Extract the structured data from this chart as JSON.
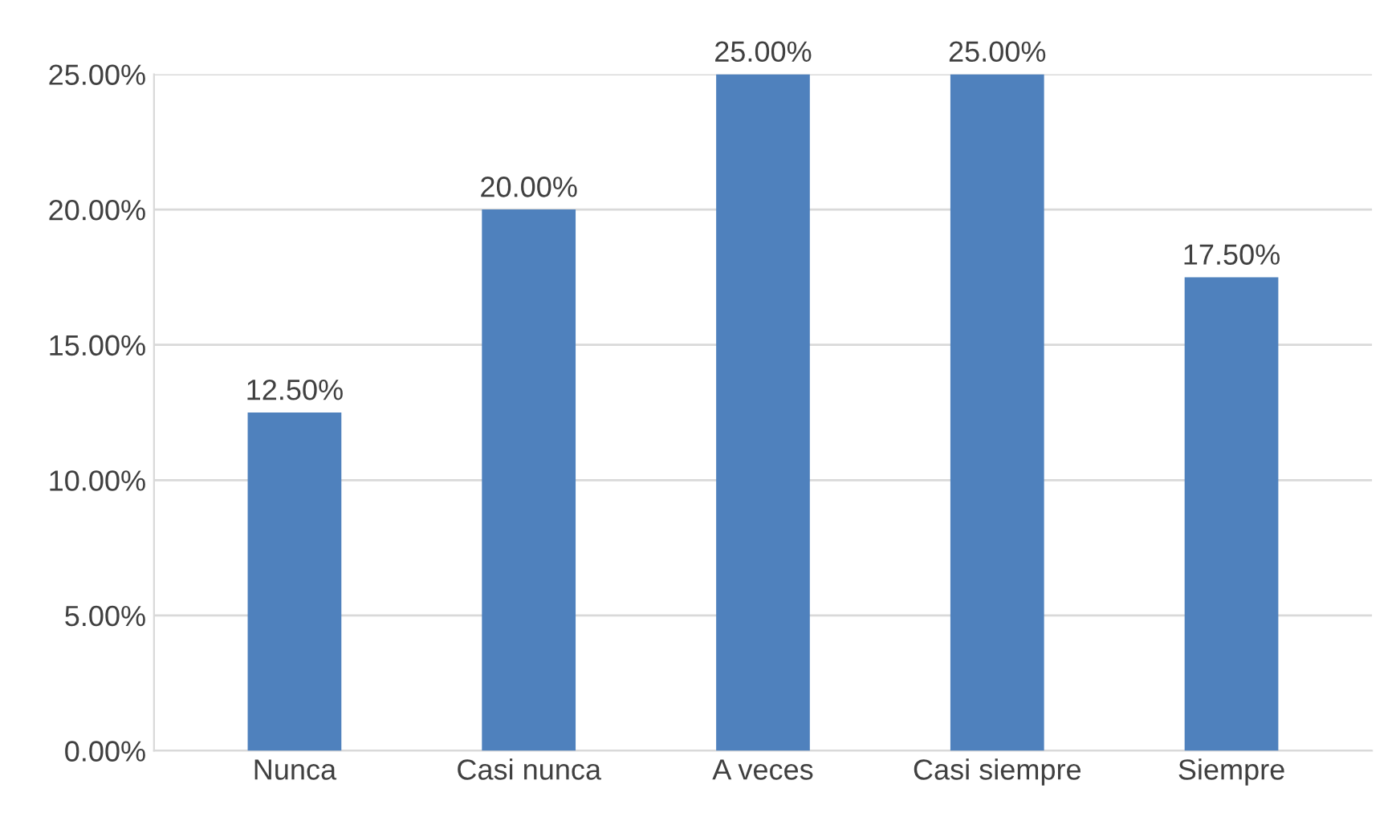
{
  "chart_data": {
    "type": "bar",
    "categories": [
      "Nunca",
      "Casi nunca",
      "A veces",
      "Casi siempre",
      "Siempre"
    ],
    "values": [
      12.5,
      20,
      25,
      25,
      17.5
    ],
    "color": "#4f81bd",
    "value_labels": [
      "12.50%",
      "20.00%",
      "25.00%",
      "25.00%",
      "17.50%"
    ],
    "ylim": [
      0,
      25
    ],
    "yticks": [
      {
        "value": 0,
        "label": "0.00%"
      },
      {
        "value": 5,
        "label": "5.00%"
      },
      {
        "value": 10,
        "label": "10.00%"
      },
      {
        "value": 15,
        "label": "15.00%"
      },
      {
        "value": 20,
        "label": "20.00%"
      },
      {
        "value": 25,
        "label": "25.00%"
      }
    ],
    "grid": "y",
    "legend": false
  }
}
